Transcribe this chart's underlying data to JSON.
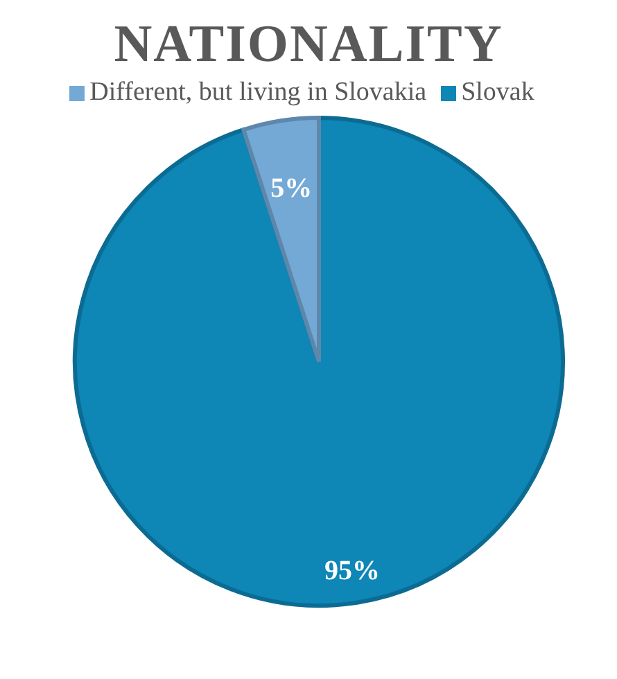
{
  "chart_data": {
    "type": "pie",
    "title": "NATIONALITY",
    "categories": [
      "Slovak",
      "Different, but living in Slovakia"
    ],
    "values": [
      95,
      5
    ],
    "colors": [
      "#0e86b6",
      "#74a9d6"
    ],
    "value_labels": [
      "95%",
      "5%"
    ],
    "legend": "top"
  }
}
